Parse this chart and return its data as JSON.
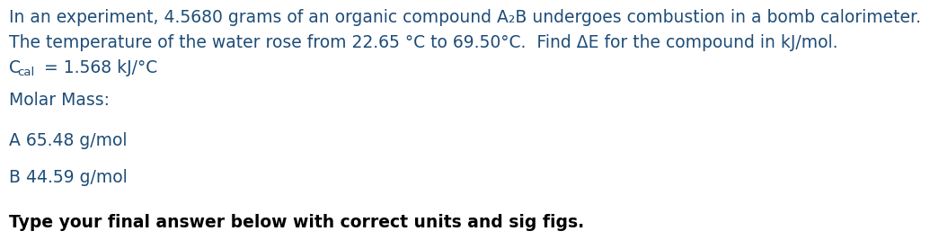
{
  "background_color": "#ffffff",
  "text_color": "#1e4d78",
  "bold_text_color": "#000000",
  "line1": "In an experiment, 4.5680 grams of an organic compound A₂B undergoes combustion in a bomb calorimeter.",
  "line2": "The temperature of the water rose from 22.65 °C to 69.50°C.  Find ΔE for the compound in kJ/mol.",
  "line3_C": "C",
  "line3_sub": "cal",
  "line3_rest": " = 1.568 kJ/°C",
  "line4": "Molar Mass:",
  "line5": "A 65.48 g/mol",
  "line6": "B 44.59 g/mol",
  "line7": "Type your final answer below with correct units and sig figs.",
  "font_size_main": 13.5,
  "font_size_sub": 9.5,
  "font_size_bold": 13.5
}
